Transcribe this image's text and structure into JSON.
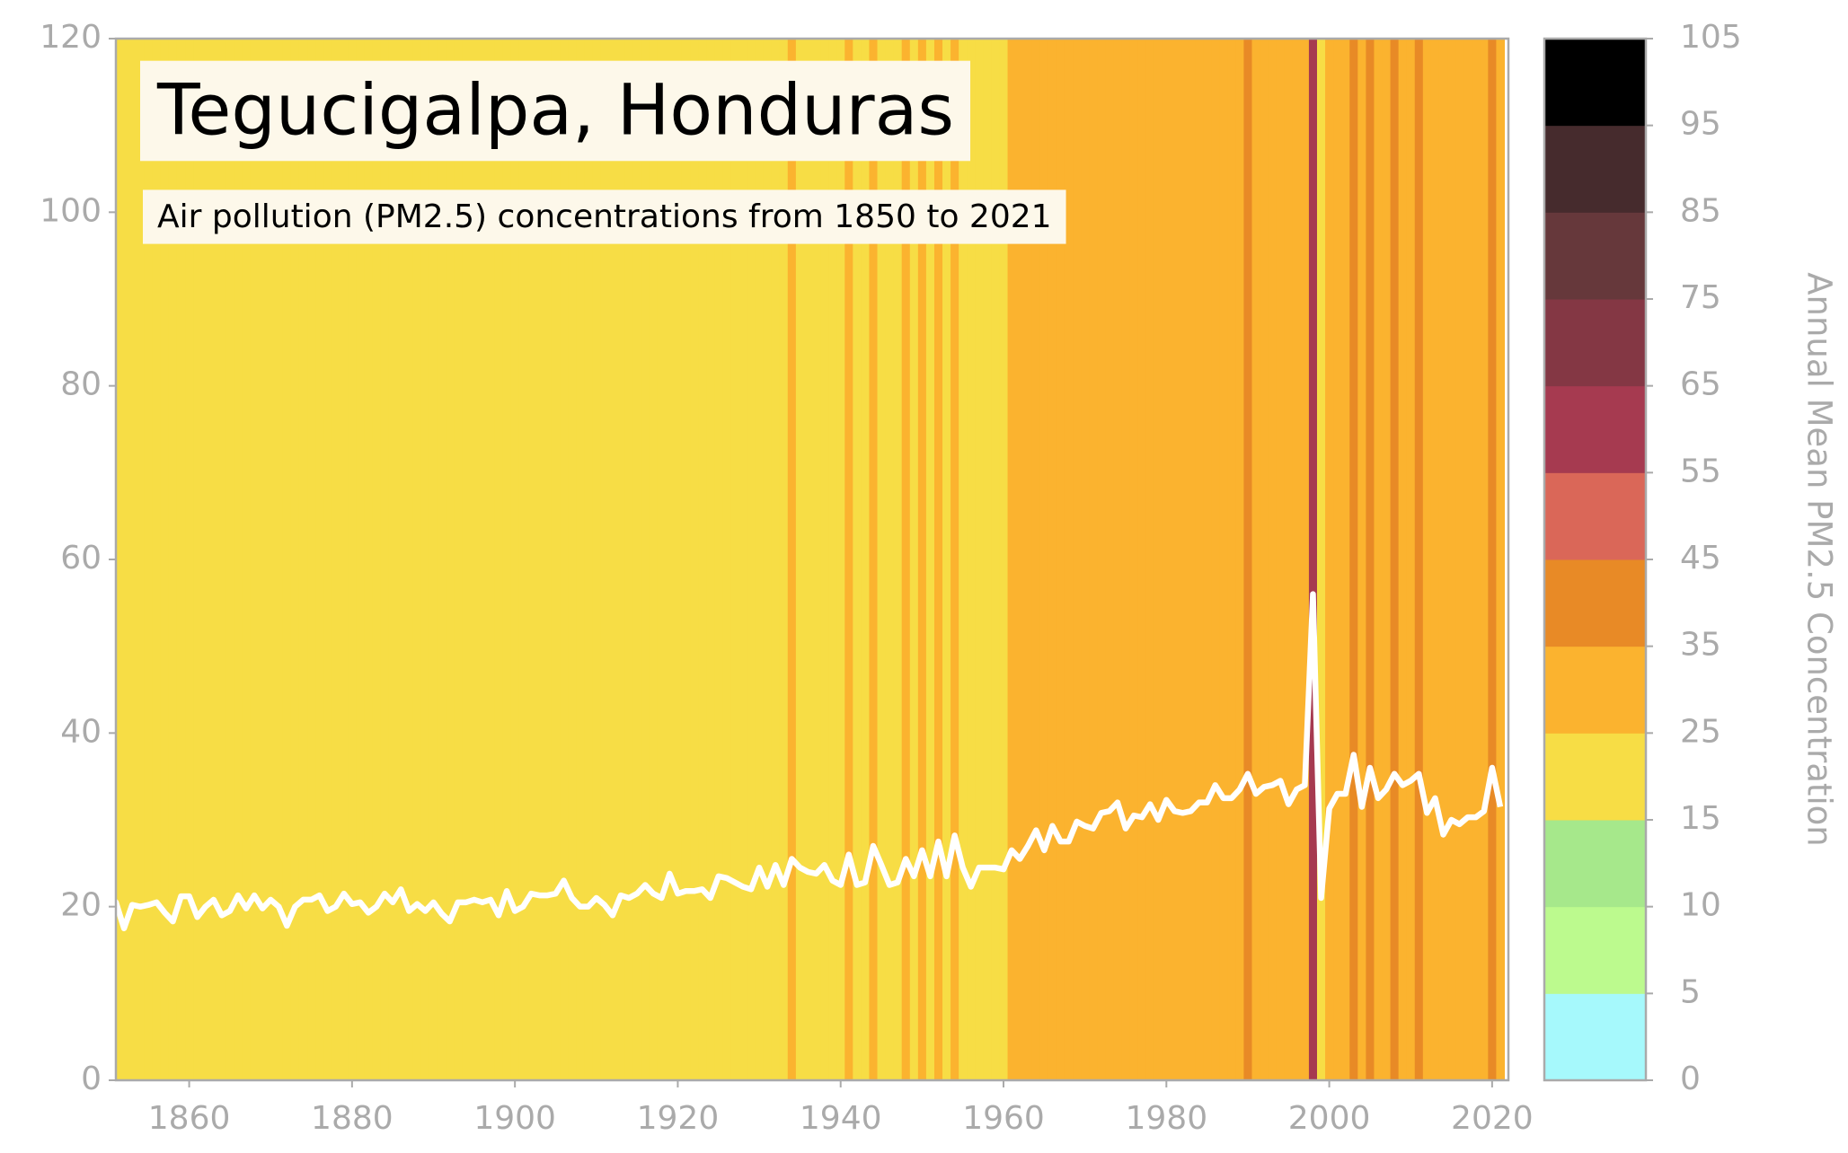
{
  "chart_data": {
    "type": "stripes",
    "title": "Tegucigalpa, Honduras",
    "subtitle": "Air pollution (PM2.5) concentrations from 1850 to 2021",
    "x_start": 1850,
    "series": [
      {
        "name": "PM2.5",
        "color": "#ffffff",
        "values": [
          21.5,
          20.5,
          17.5,
          20.2,
          20,
          20.2,
          20.5,
          19.3,
          18.3,
          21.2,
          21.2,
          18.8,
          20,
          20.8,
          19,
          19.5,
          21.3,
          19.8,
          21.3,
          19.8,
          20.8,
          20,
          17.8,
          20,
          20.8,
          20.8,
          21.3,
          19.5,
          20,
          21.5,
          20.3,
          20.5,
          19.3,
          20,
          21.5,
          20.5,
          22,
          19.5,
          20.3,
          19.5,
          20.5,
          19.2,
          18.3,
          20.5,
          20.5,
          20.8,
          20.5,
          20.8,
          19,
          21.8,
          19.5,
          20,
          21.5,
          21.3,
          21.3,
          21.5,
          23,
          21,
          20,
          20,
          21,
          20.2,
          19,
          21.3,
          21,
          21.5,
          22.5,
          21.5,
          21,
          23.8,
          21.5,
          21.8,
          21.8,
          22,
          21,
          23.5,
          23.3,
          22.8,
          22.3,
          22,
          24.5,
          22.3,
          24.8,
          22.5,
          25.5,
          24.5,
          24,
          23.8,
          24.8,
          23,
          22.5,
          26,
          22.5,
          22.8,
          27,
          24.8,
          22.5,
          22.8,
          25.5,
          23.5,
          26.5,
          23.5,
          27.5,
          23.5,
          28.2,
          24.5,
          22.3,
          24.5,
          24.5,
          24.5,
          24.3,
          26.5,
          25.5,
          27,
          28.8,
          26.5,
          29.3,
          27.5,
          27.5,
          29.8,
          29.3,
          29,
          30.8,
          31,
          32,
          29,
          30.5,
          30.3,
          31.8,
          30,
          32.3,
          31,
          30.8,
          31,
          32,
          32,
          34,
          32.5,
          32.5,
          33.5,
          35.3,
          33,
          33.8,
          34,
          34.5,
          31.8,
          33.5,
          34,
          56,
          21,
          31.3,
          33,
          33,
          37.5,
          31.5,
          36,
          32.5,
          33.5,
          35.3,
          34,
          34.5,
          35.3,
          30.8,
          32.5,
          28.3,
          30,
          29.5,
          30.3,
          30.3,
          31,
          36,
          31.5
        ]
      }
    ],
    "xlim": [
      1851,
      2022
    ],
    "xticks": [
      1860,
      1880,
      1900,
      1920,
      1940,
      1960,
      1980,
      2000,
      2020
    ],
    "ylim": [
      0,
      120
    ],
    "yticks": [
      0,
      20,
      40,
      60,
      80,
      100,
      120
    ],
    "colorbar": {
      "label": "Annual Mean PM2.5 Concentration",
      "ticks": [
        0,
        5,
        10,
        15,
        25,
        35,
        45,
        55,
        65,
        75,
        85,
        95,
        105
      ],
      "colors": [
        "#a6f9fc",
        "#bcfa8e",
        "#a6e88b",
        "#f7dd45",
        "#fbb32f",
        "#e88a26",
        "#da6758",
        "#a63a50",
        "#843744",
        "#66383b",
        "#462b2d",
        "#000000"
      ]
    }
  }
}
